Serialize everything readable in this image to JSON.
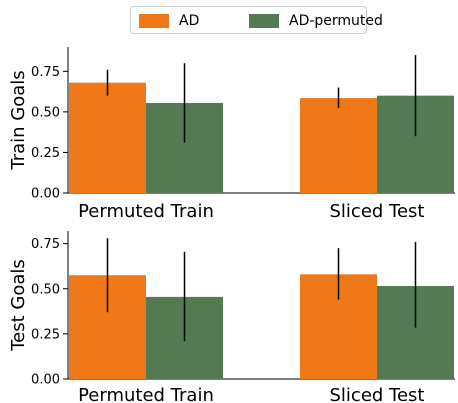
{
  "legend": {
    "items": [
      {
        "label": "AD",
        "color": "#f07818"
      },
      {
        "label": "AD-permuted",
        "color": "#537a52"
      }
    ]
  },
  "chart_data": [
    {
      "type": "bar",
      "categories": [
        "Permuted Train",
        "Sliced Test"
      ],
      "ylabel": "Train Goals",
      "ylim": [
        0,
        0.9
      ],
      "yticks": [
        "0.00",
        "0.25",
        "0.50",
        "0.75"
      ],
      "ytick_values": [
        0,
        0.25,
        0.5,
        0.75
      ],
      "grid": false,
      "series": [
        {
          "name": "AD",
          "color": "#f07818",
          "values": [
            0.68,
            0.585
          ],
          "err_low": [
            0.6,
            0.525
          ],
          "err_high": [
            0.76,
            0.65
          ]
        },
        {
          "name": "AD-permuted",
          "color": "#537a52",
          "values": [
            0.555,
            0.6
          ],
          "err_low": [
            0.31,
            0.35
          ],
          "err_high": [
            0.8,
            0.85
          ]
        }
      ]
    },
    {
      "type": "bar",
      "categories": [
        "Permuted Train",
        "Sliced Test"
      ],
      "ylabel": "Test Goals",
      "ylim": [
        0,
        0.82
      ],
      "yticks": [
        "0.00",
        "0.25",
        "0.50",
        "0.75"
      ],
      "ytick_values": [
        0,
        0.25,
        0.5,
        0.75
      ],
      "grid": false,
      "series": [
        {
          "name": "AD",
          "color": "#f07818",
          "values": [
            0.575,
            0.58
          ],
          "err_low": [
            0.37,
            0.44
          ],
          "err_high": [
            0.78,
            0.725
          ]
        },
        {
          "name": "AD-permuted",
          "color": "#537a52",
          "values": [
            0.455,
            0.515
          ],
          "err_low": [
            0.21,
            0.285
          ],
          "err_high": [
            0.705,
            0.76
          ]
        }
      ]
    }
  ]
}
